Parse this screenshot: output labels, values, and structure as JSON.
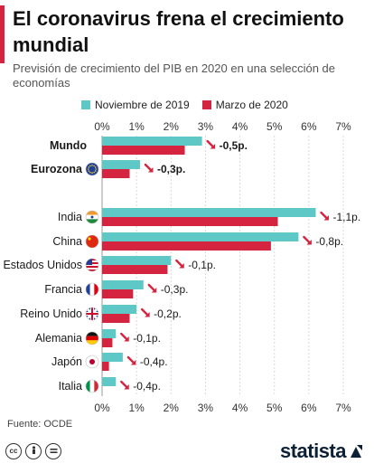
{
  "header": {
    "title": "El coronavirus frena el crecimiento mundial",
    "subtitle": "Previsión de crecimiento del PIB en 2020 en una selección de economías"
  },
  "legend": {
    "items": [
      {
        "label": "Noviembre de 2019",
        "color": "#5dc8c6"
      },
      {
        "label": "Marzo de 2020",
        "color": "#d4243f"
      }
    ]
  },
  "chart_data": {
    "type": "bar",
    "orientation": "horizontal",
    "title": "El coronavirus frena el crecimiento mundial",
    "subtitle": "Previsión de crecimiento del PIB en 2020 en una selección de economías",
    "xlim": [
      0,
      7
    ],
    "x_ticks": [
      "0%",
      "1%",
      "2%",
      "3%",
      "4%",
      "5%",
      "6%",
      "7%"
    ],
    "grid": true,
    "legend_position": "top",
    "categories": [
      "Mundo",
      "Eurozona",
      "India",
      "China",
      "Estados Unidos",
      "Francia",
      "Reino Unido",
      "Alemania",
      "Japón",
      "Italia"
    ],
    "bold_categories": [
      "Mundo",
      "Eurozona"
    ],
    "flags": [
      "none",
      "eu",
      "in",
      "cn",
      "us",
      "fr",
      "gb",
      "de",
      "jp",
      "it"
    ],
    "series": [
      {
        "name": "Noviembre de 2019",
        "color": "#5dc8c6",
        "values": [
          2.9,
          1.1,
          6.2,
          5.7,
          2.0,
          1.2,
          1.0,
          0.4,
          0.6,
          0.4
        ]
      },
      {
        "name": "Marzo de 2020",
        "color": "#d4243f",
        "values": [
          2.4,
          0.8,
          5.1,
          4.9,
          1.9,
          0.9,
          0.8,
          0.3,
          0.2,
          0.0
        ]
      }
    ],
    "annotations": [
      "-0,5p.",
      "-0,3p.",
      "-1,1p.",
      "-0,8p.",
      "-0,1p.",
      "-0,3p.",
      "-0,2p.",
      "-0,1p.",
      "-0,4p.",
      "-0,4p."
    ]
  },
  "footer": {
    "source": "Fuente: OCDE",
    "brand": "statista",
    "license_icons": [
      "cc",
      "by",
      "nd"
    ]
  }
}
